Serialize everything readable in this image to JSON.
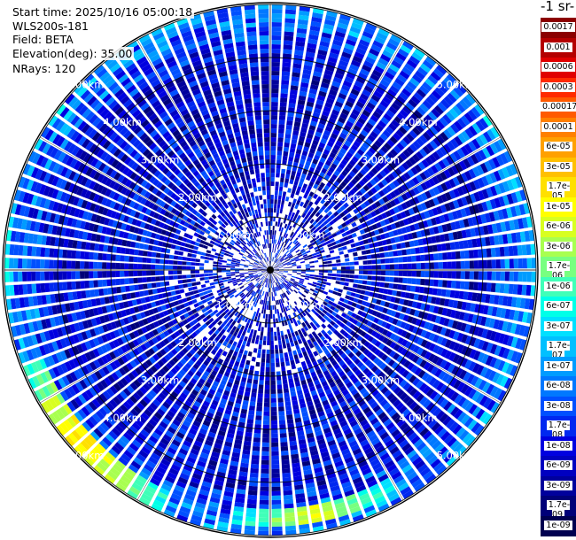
{
  "info": {
    "start_time": "Start time: 2025/10/16 05:00:18",
    "station": "WLS200s-181",
    "field": "Field: BETA",
    "elevation": "Elevation(deg): 35.00",
    "nrays": "NRays: 120"
  },
  "colorbar": {
    "title_fragment": "-1 sr-",
    "labels": [
      "0.0017",
      "0.001",
      "0.0006",
      "0.0003",
      "0.00017",
      "0.0001",
      "6e-05",
      "3e-05",
      "1.7e-05",
      "1e-05",
      "6e-06",
      "3e-06",
      "1.7e-06",
      "1e-06",
      "6e-07",
      "3e-07",
      "1.7e-07",
      "1e-07",
      "6e-08",
      "3e-08",
      "1.7e-08",
      "1e-08",
      "6e-09",
      "3e-09",
      "1.7e-09",
      "1e-09"
    ],
    "colors": [
      "#8b0000",
      "#b40000",
      "#e00000",
      "#ff2a00",
      "#ff5a00",
      "#ff8000",
      "#ffa000",
      "#ffc000",
      "#ffe000",
      "#ffff00",
      "#d8ff20",
      "#a8ff50",
      "#78ff80",
      "#40ffb8",
      "#00ffe8",
      "#00e0ff",
      "#00c0ff",
      "#009cff",
      "#0078ff",
      "#0050ff",
      "#0028f0",
      "#0000e0",
      "#0000c0",
      "#00009c",
      "#000078",
      "#000050"
    ]
  },
  "chart_data": {
    "type": "heatmap",
    "projection": "polar-ppi",
    "title": "",
    "range_rings_km": [
      1.0,
      2.0,
      3.0,
      4.0,
      5.0
    ],
    "ring_label_text": [
      "1.00km",
      "2.00km",
      "3.00km",
      "4.00km",
      "5.00km"
    ],
    "max_range_km": 5.0,
    "nrays": 120,
    "elevation_deg": 35.0,
    "field": "BETA",
    "units_fragment": "-1 sr-",
    "color_scale": "log",
    "value_range": [
      1e-09,
      0.0017
    ],
    "typical_background_value": 1e-08,
    "features": [
      {
        "name": "southwest-edge arc",
        "azimuth_deg": [
          205,
          250
        ],
        "range_km": [
          4.6,
          5.0
        ],
        "peak_value": 3e-05
      },
      {
        "name": "south-edge arc",
        "azimuth_deg": [
          150,
          190
        ],
        "range_km": [
          4.5,
          4.8
        ],
        "peak_value": 1e-05
      },
      {
        "name": "west-edge band",
        "azimuth_deg": [
          255,
          290
        ],
        "range_km": [
          4.9,
          5.0
        ],
        "peak_value": 1e-06
      }
    ]
  }
}
